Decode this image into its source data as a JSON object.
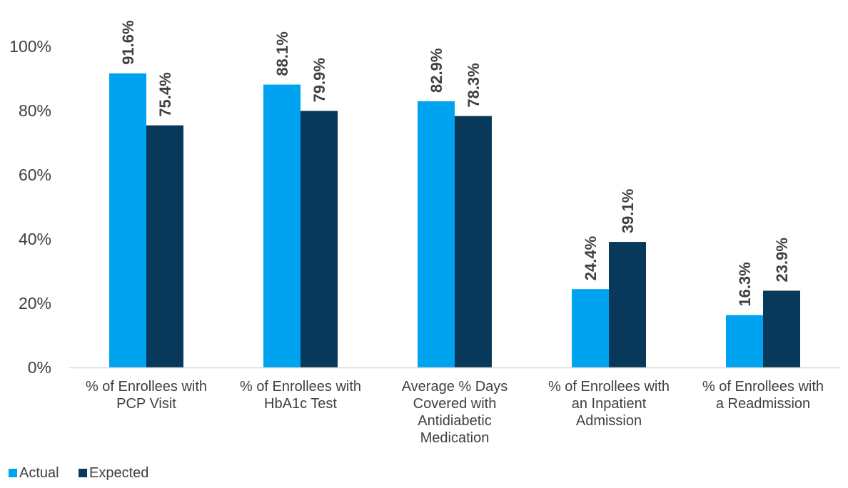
{
  "chart_data": {
    "type": "bar",
    "title": "",
    "xlabel": "",
    "ylabel": "",
    "ylim": [
      0,
      100
    ],
    "yticks": [
      0,
      20,
      40,
      60,
      80,
      100
    ],
    "ytick_suffix": "%",
    "grid": false,
    "legend_position": "bottom-left",
    "categories": [
      [
        "% of Enrollees with",
        "PCP Visit"
      ],
      [
        "% of Enrollees with",
        "HbA1c Test"
      ],
      [
        "Average % Days",
        "Covered with",
        "Antidiabetic",
        "Medication"
      ],
      [
        "% of Enrollees with",
        "an Inpatient",
        "Admission"
      ],
      [
        "% of Enrollees with",
        "a Readmission"
      ]
    ],
    "series": [
      {
        "name": "Actual",
        "color": "#00a3f0",
        "values": [
          91.6,
          88.1,
          82.9,
          24.4,
          16.3
        ],
        "labels": [
          "91.6%",
          "88.1%",
          "82.9%",
          "24.4%",
          "16.3%"
        ]
      },
      {
        "name": "Expected",
        "color": "#08385a",
        "values": [
          75.4,
          79.9,
          78.3,
          39.1,
          23.9
        ],
        "labels": [
          "75.4%",
          "79.9%",
          "78.3%",
          "39.1%",
          "23.9%"
        ]
      }
    ]
  },
  "colors": {
    "axis_line": "#d9d9d9",
    "tick_text": "#404040",
    "data_label_text": "#404040",
    "category_text": "#404040",
    "legend_text": "#404040"
  }
}
